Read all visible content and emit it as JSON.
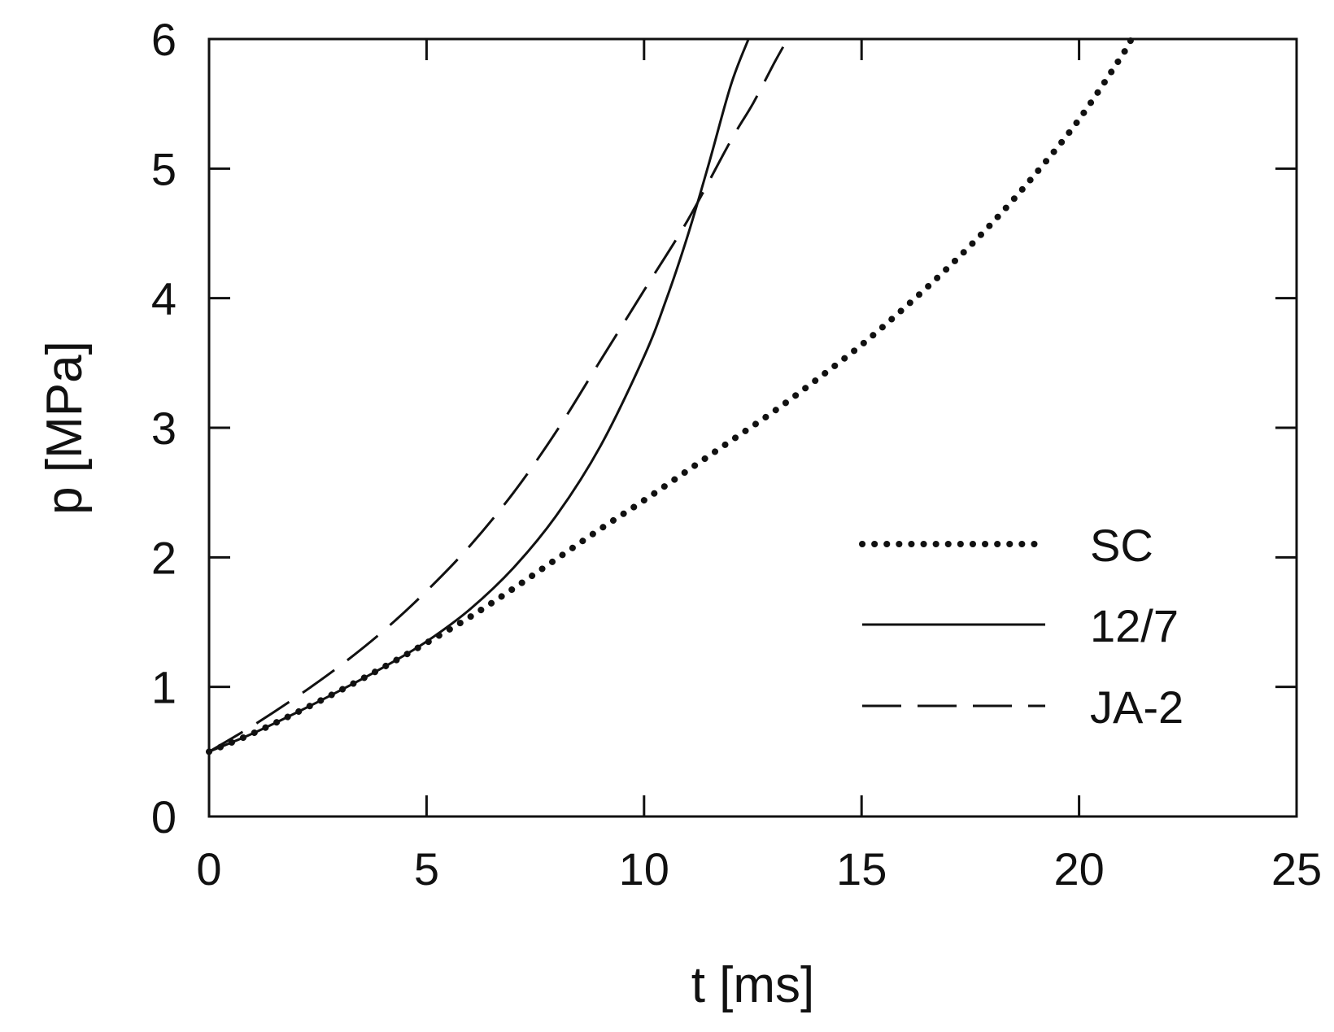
{
  "chart_data": {
    "type": "line",
    "title": "",
    "xlabel": "t [ms]",
    "ylabel": "p [MPa]",
    "xlim": [
      0,
      25
    ],
    "ylim": [
      0,
      6
    ],
    "xticks": [
      0,
      5,
      10,
      15,
      20,
      25
    ],
    "yticks": [
      0,
      1,
      2,
      3,
      4,
      5,
      6
    ],
    "xtick_labels": [
      "0",
      "5",
      "10",
      "15",
      "20",
      "25"
    ],
    "ytick_labels": [
      "0",
      "1",
      "2",
      "3",
      "4",
      "5",
      "6"
    ],
    "grid": false,
    "legend_position": "bottom-right",
    "series": [
      {
        "name": "SC",
        "style": "dotted",
        "color": "#111111",
        "x": [
          0,
          1,
          2,
          3,
          4,
          5,
          6,
          7,
          8,
          9,
          10,
          11,
          12,
          13,
          14,
          15,
          16,
          17,
          18,
          19,
          20,
          21,
          21.2
        ],
        "y": [
          0.5,
          0.64,
          0.8,
          0.97,
          1.15,
          1.34,
          1.54,
          1.76,
          1.99,
          2.22,
          2.44,
          2.67,
          2.9,
          3.13,
          3.38,
          3.64,
          3.93,
          4.24,
          4.58,
          4.96,
          5.38,
          5.88,
          6.0
        ]
      },
      {
        "name": "12/7",
        "style": "solid",
        "color": "#111111",
        "x": [
          0,
          1,
          2,
          3,
          4,
          5,
          6,
          7,
          8,
          9,
          10,
          10.5,
          11,
          11.5,
          12,
          12.4
        ],
        "y": [
          0.5,
          0.64,
          0.8,
          0.97,
          1.15,
          1.35,
          1.6,
          1.92,
          2.33,
          2.86,
          3.55,
          3.98,
          4.48,
          5.05,
          5.65,
          6.0
        ]
      },
      {
        "name": "JA-2",
        "style": "dashed",
        "color": "#111111",
        "x": [
          0,
          1,
          2,
          3,
          4,
          5,
          6,
          7,
          8,
          9,
          10,
          11,
          12,
          12.5,
          13,
          13.3
        ],
        "y": [
          0.5,
          0.7,
          0.92,
          1.16,
          1.43,
          1.74,
          2.09,
          2.5,
          2.98,
          3.52,
          4.06,
          4.6,
          5.22,
          5.5,
          5.82,
          6.0
        ]
      }
    ]
  }
}
